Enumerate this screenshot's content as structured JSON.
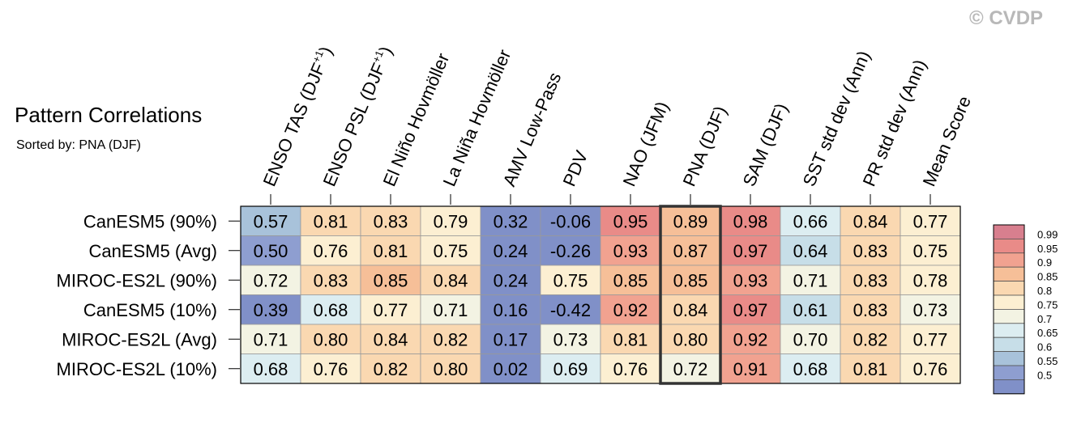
{
  "watermark": "© CVDP",
  "chart_data": {
    "type": "heatmap",
    "title": "Pattern Correlations",
    "subtitle": "Sorted by: PNA (DJF)",
    "columns": [
      {
        "label": "ENSO TAS (DJF",
        "sup": "+1",
        "close": ")"
      },
      {
        "label": "ENSO PSL (DJF",
        "sup": "+1",
        "close": ")"
      },
      {
        "label": "El Niño Hovmöller",
        "sup": "",
        "close": ""
      },
      {
        "label": "La Niña Hovmöller",
        "sup": "",
        "close": ""
      },
      {
        "label": "AMV Low-Pass",
        "sup": "",
        "close": ""
      },
      {
        "label": "PDV",
        "sup": "",
        "close": ""
      },
      {
        "label": "NAO (JFM)",
        "sup": "",
        "close": ""
      },
      {
        "label": "PNA (DJF)",
        "sup": "",
        "close": ""
      },
      {
        "label": "SAM (DJF)",
        "sup": "",
        "close": ""
      },
      {
        "label": "SST std dev (Ann)",
        "sup": "",
        "close": ""
      },
      {
        "label": "PR std dev (Ann)",
        "sup": "",
        "close": ""
      },
      {
        "label": "Mean Score",
        "sup": "",
        "close": ""
      }
    ],
    "rows": [
      "CanESM5 (90%)",
      "CanESM5 (Avg)",
      "MIROC-ES2L (90%)",
      "CanESM5 (10%)",
      "MIROC-ES2L (Avg)",
      "MIROC-ES2L (10%)"
    ],
    "values": [
      [
        "0.57",
        "0.81",
        "0.83",
        "0.79",
        "0.32",
        "-0.06",
        "0.95",
        "0.89",
        "0.98",
        "0.66",
        "0.84",
        "0.77"
      ],
      [
        "0.50",
        "0.76",
        "0.81",
        "0.75",
        "0.24",
        "-0.26",
        "0.93",
        "0.87",
        "0.97",
        "0.64",
        "0.83",
        "0.75"
      ],
      [
        "0.72",
        "0.83",
        "0.85",
        "0.84",
        "0.24",
        "0.75",
        "0.85",
        "0.85",
        "0.93",
        "0.71",
        "0.83",
        "0.78"
      ],
      [
        "0.39",
        "0.68",
        "0.77",
        "0.71",
        "0.16",
        "-0.42",
        "0.92",
        "0.84",
        "0.97",
        "0.61",
        "0.83",
        "0.73"
      ],
      [
        "0.71",
        "0.80",
        "0.84",
        "0.82",
        "0.17",
        "0.73",
        "0.81",
        "0.80",
        "0.92",
        "0.70",
        "0.82",
        "0.77"
      ],
      [
        "0.68",
        "0.76",
        "0.82",
        "0.80",
        "0.02",
        "0.69",
        "0.76",
        "0.72",
        "0.91",
        "0.68",
        "0.81",
        "0.76"
      ]
    ],
    "highlight_column": 7,
    "colorbar": {
      "levels": [
        "0.99",
        "0.95",
        "0.9",
        "0.85",
        "0.8",
        "0.75",
        "0.7",
        "0.65",
        "0.6",
        "0.55",
        "0.5"
      ],
      "colors": [
        "#d87f8e",
        "#e98b88",
        "#f1a290",
        "#f6bf98",
        "#fad8b1",
        "#fcefd2",
        "#f3f3e3",
        "#dcedf1",
        "#c7dee8",
        "#a8c2da",
        "#8e9ed0",
        "#8090c8"
      ]
    }
  }
}
